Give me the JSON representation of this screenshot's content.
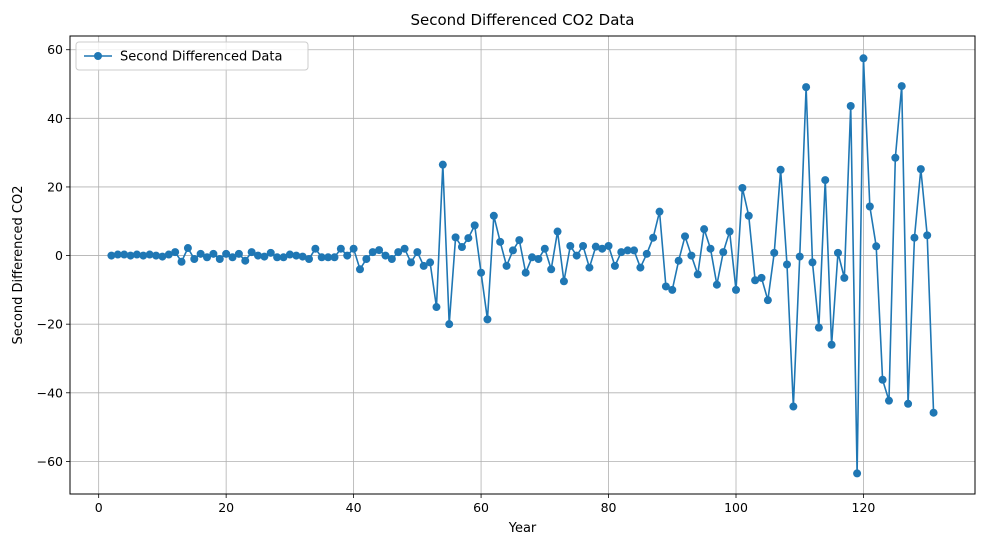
{
  "chart_data": {
    "type": "line",
    "title": "Second Differenced CO2 Data",
    "xlabel": "Year",
    "ylabel": "Second Differenced CO2",
    "xlim": [
      -4.5,
      137.5
    ],
    "ylim": [
      -69.5,
      64
    ],
    "xticks": [
      0,
      20,
      40,
      60,
      80,
      100,
      120
    ],
    "yticks": [
      -60,
      -40,
      -20,
      0,
      20,
      40,
      60
    ],
    "xtick_labels": [
      "0",
      "20",
      "40",
      "60",
      "80",
      "100",
      "120"
    ],
    "ytick_labels": [
      "−60",
      "−40",
      "−20",
      "0",
      "20",
      "40",
      "60"
    ],
    "grid": true,
    "legend_position": "top-left",
    "series": [
      {
        "name": "Second Differenced Data",
        "color": "#1f77b4",
        "marker": "circle",
        "x": [
          2,
          3,
          4,
          5,
          6,
          7,
          8,
          9,
          10,
          11,
          12,
          13,
          14,
          15,
          16,
          17,
          18,
          19,
          20,
          21,
          22,
          23,
          24,
          25,
          26,
          27,
          28,
          29,
          30,
          31,
          32,
          33,
          34,
          35,
          36,
          37,
          38,
          39,
          40,
          41,
          42,
          43,
          44,
          45,
          46,
          47,
          48,
          49,
          50,
          51,
          52,
          53,
          54,
          55,
          56,
          57,
          58,
          59,
          60,
          61,
          62,
          63,
          64,
          65,
          66,
          67,
          68,
          69,
          70,
          71,
          72,
          73,
          74,
          75,
          76,
          77,
          78,
          79,
          80,
          81,
          82,
          83,
          84,
          85,
          86,
          87,
          88,
          89,
          90,
          91,
          92,
          93,
          94,
          95,
          96,
          97,
          98,
          99,
          100,
          101,
          102,
          103,
          104,
          105,
          106,
          107,
          108,
          109,
          110,
          111,
          112,
          113,
          114,
          115,
          116,
          117,
          118,
          119,
          120,
          121,
          122,
          123,
          124,
          125,
          126,
          127,
          128,
          129,
          130,
          131
        ],
        "values": [
          0,
          0.3,
          0.3,
          0,
          0.3,
          0,
          0.3,
          0,
          -0.3,
          0.3,
          1,
          -1.8,
          2.2,
          -1,
          0.5,
          -0.5,
          0.5,
          -1,
          0.5,
          -0.5,
          0.5,
          -1.5,
          1,
          0,
          -0.3,
          0.8,
          -0.5,
          -0.5,
          0.3,
          0,
          -0.3,
          -1,
          2,
          -0.5,
          -0.5,
          -0.5,
          2,
          0,
          2,
          -4,
          -1,
          1,
          1.6,
          0,
          -1,
          1,
          2,
          -2,
          1,
          -3,
          -2,
          -15,
          26.5,
          -20,
          5.3,
          2.5,
          5.1,
          8.8,
          -5,
          -18.6,
          11.6,
          4,
          -3,
          1.5,
          4.5,
          -5,
          -0.5,
          -1,
          2,
          -4,
          7,
          -7.5,
          2.8,
          0,
          2.8,
          -3.5,
          2.6,
          2,
          2.8,
          -3,
          1,
          1.5,
          1.5,
          -3.5,
          0.5,
          5.2,
          12.8,
          -9,
          -10,
          -1.5,
          5.6,
          0,
          -5.5,
          7.7,
          2,
          -8.5,
          1,
          7,
          -10,
          19.7,
          11.6,
          -7.2,
          -6.5,
          -13,
          0.8,
          25,
          -2.6,
          -44,
          -0.3,
          49.1,
          -2,
          -21,
          22,
          -26,
          0.8,
          -6.5,
          43.6,
          -63.5,
          57.5,
          14.3,
          2.7,
          -36.2,
          -42.3,
          28.5,
          49.4,
          -43.2,
          5.2,
          25.2,
          5.9,
          -45.8
        ]
      }
    ]
  }
}
